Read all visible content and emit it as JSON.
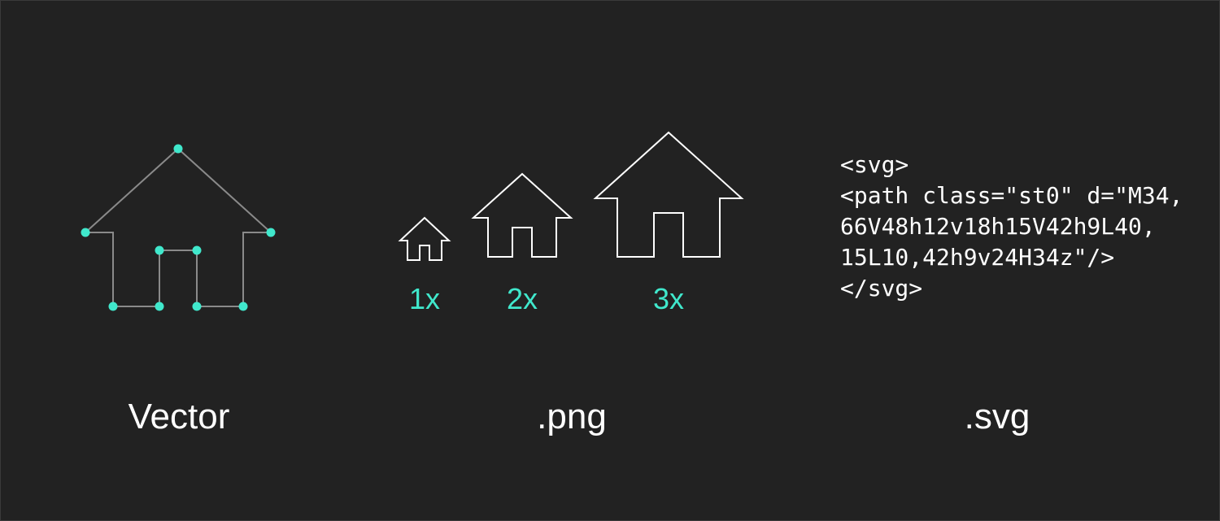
{
  "colors": {
    "background": "#222222",
    "accent": "#40e8cc",
    "outline": "#ffffff",
    "vector_path": "#8a8a8a"
  },
  "vector": {
    "caption": "Vector"
  },
  "png": {
    "caption": ".png",
    "scales": [
      {
        "label": "1x",
        "factor": 1
      },
      {
        "label": "2x",
        "factor": 2
      },
      {
        "label": "3x",
        "factor": 3
      }
    ]
  },
  "svg": {
    "caption": ".svg",
    "code_lines": [
      "<svg>",
      "<path class=\"st0\" d=\"M34,",
      "66V48h12v18h15V42h9L40,",
      "15L10,42h9v24H34z\"/>",
      "</svg>"
    ]
  }
}
